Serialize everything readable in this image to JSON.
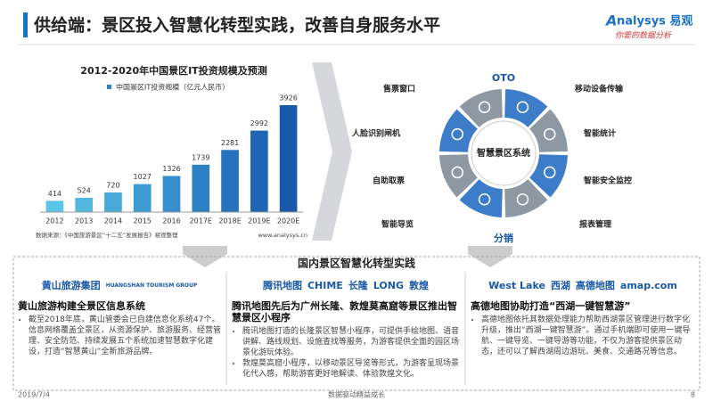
{
  "header": {
    "title": "供给端：景区投入智慧化转型实践，改善自身服务水平",
    "brand": "nalysys 易观",
    "brand_initial": "A",
    "slogan": "你要的数据分析"
  },
  "chart_data": {
    "type": "bar",
    "title": "2012-2020年中国景区IT投资规模及预测",
    "legend": "中国景区IT投资规模（亿元人民币）",
    "categories": [
      "2012",
      "2013",
      "2014",
      "2015",
      "2016",
      "2017E",
      "2018E",
      "2019E",
      "2020E"
    ],
    "values": [
      414,
      524,
      720,
      1027,
      1326,
      1739,
      2281,
      2992,
      3926
    ],
    "colors": [
      "#5cc6e6",
      "#52b8e0",
      "#48aad9",
      "#3f9cd3",
      "#368ecc",
      "#2d80c4",
      "#2672bc",
      "#1f65b3",
      "#1a58a8"
    ],
    "source": "数据来源：《中国旅游景区“十二五”发展报告》易观整理",
    "site": "www.analysys.cn"
  },
  "diagram": {
    "center": "智慧景区系统",
    "top": "OTO",
    "bottom": "分销",
    "labels": [
      "售票窗口",
      "移动设备传输",
      "人脸识别闸机",
      "智能统计",
      "自助取票",
      "智能安全监控",
      "智能导览",
      "报表管理"
    ]
  },
  "practice": {
    "title": "国内景区智慧化转型实践",
    "cases": [
      {
        "logos": [
          "黄山旅游集团",
          "HUANGSHAN TOURISM GROUP"
        ],
        "heading": "黄山旅游构建全景区信息系统",
        "points": [
          "截至2018年底，黄山管委会已自建信息化系统47个。信息网络覆盖全景区，从资源保护、旅游服务、经营管理、安全防范、持续发展五个系统加速智慧数字化建设，打造“智慧黄山”全新旅游品牌。"
        ]
      },
      {
        "logos": [
          "腾讯地图",
          "CHIME",
          "长隆",
          "LONG",
          "敦煌"
        ],
        "heading": "腾讯地图先后为广州长隆、敦煌莫高窟等景区推出智慧景区小程序",
        "points": [
          "腾讯地图打造的长隆景区智慧小程序，可提供手绘地图、语音讲解、路线规划、设施查找等服务，为游客提供全面的园区场景化游玩体验。",
          "敦煌莫高窟小程序，以移动景区导览等形式，为游客呈现场景化代入感，帮助游客更好地解读、体验敦煌文化。"
        ]
      },
      {
        "logos": [
          "West Lake",
          "西湖",
          "高德地图",
          "amap.com"
        ],
        "heading": "高德地图协助打造“西湖一键智慧游”",
        "points": [
          "高德地图依托其数据处理能力帮助西湖景区管理进行数字化升级，推出“西湖一键智慧游”。通过手机端即可使用一键导航、一键导览、一键导游等功能，不仅为游客提供景区动态，还可以了解西湖周边游玩、美食、交通路况等信息。"
        ]
      }
    ]
  },
  "footer": {
    "date": "2019/7/4",
    "slogan": "数据驱动精益成长",
    "page": "8"
  }
}
